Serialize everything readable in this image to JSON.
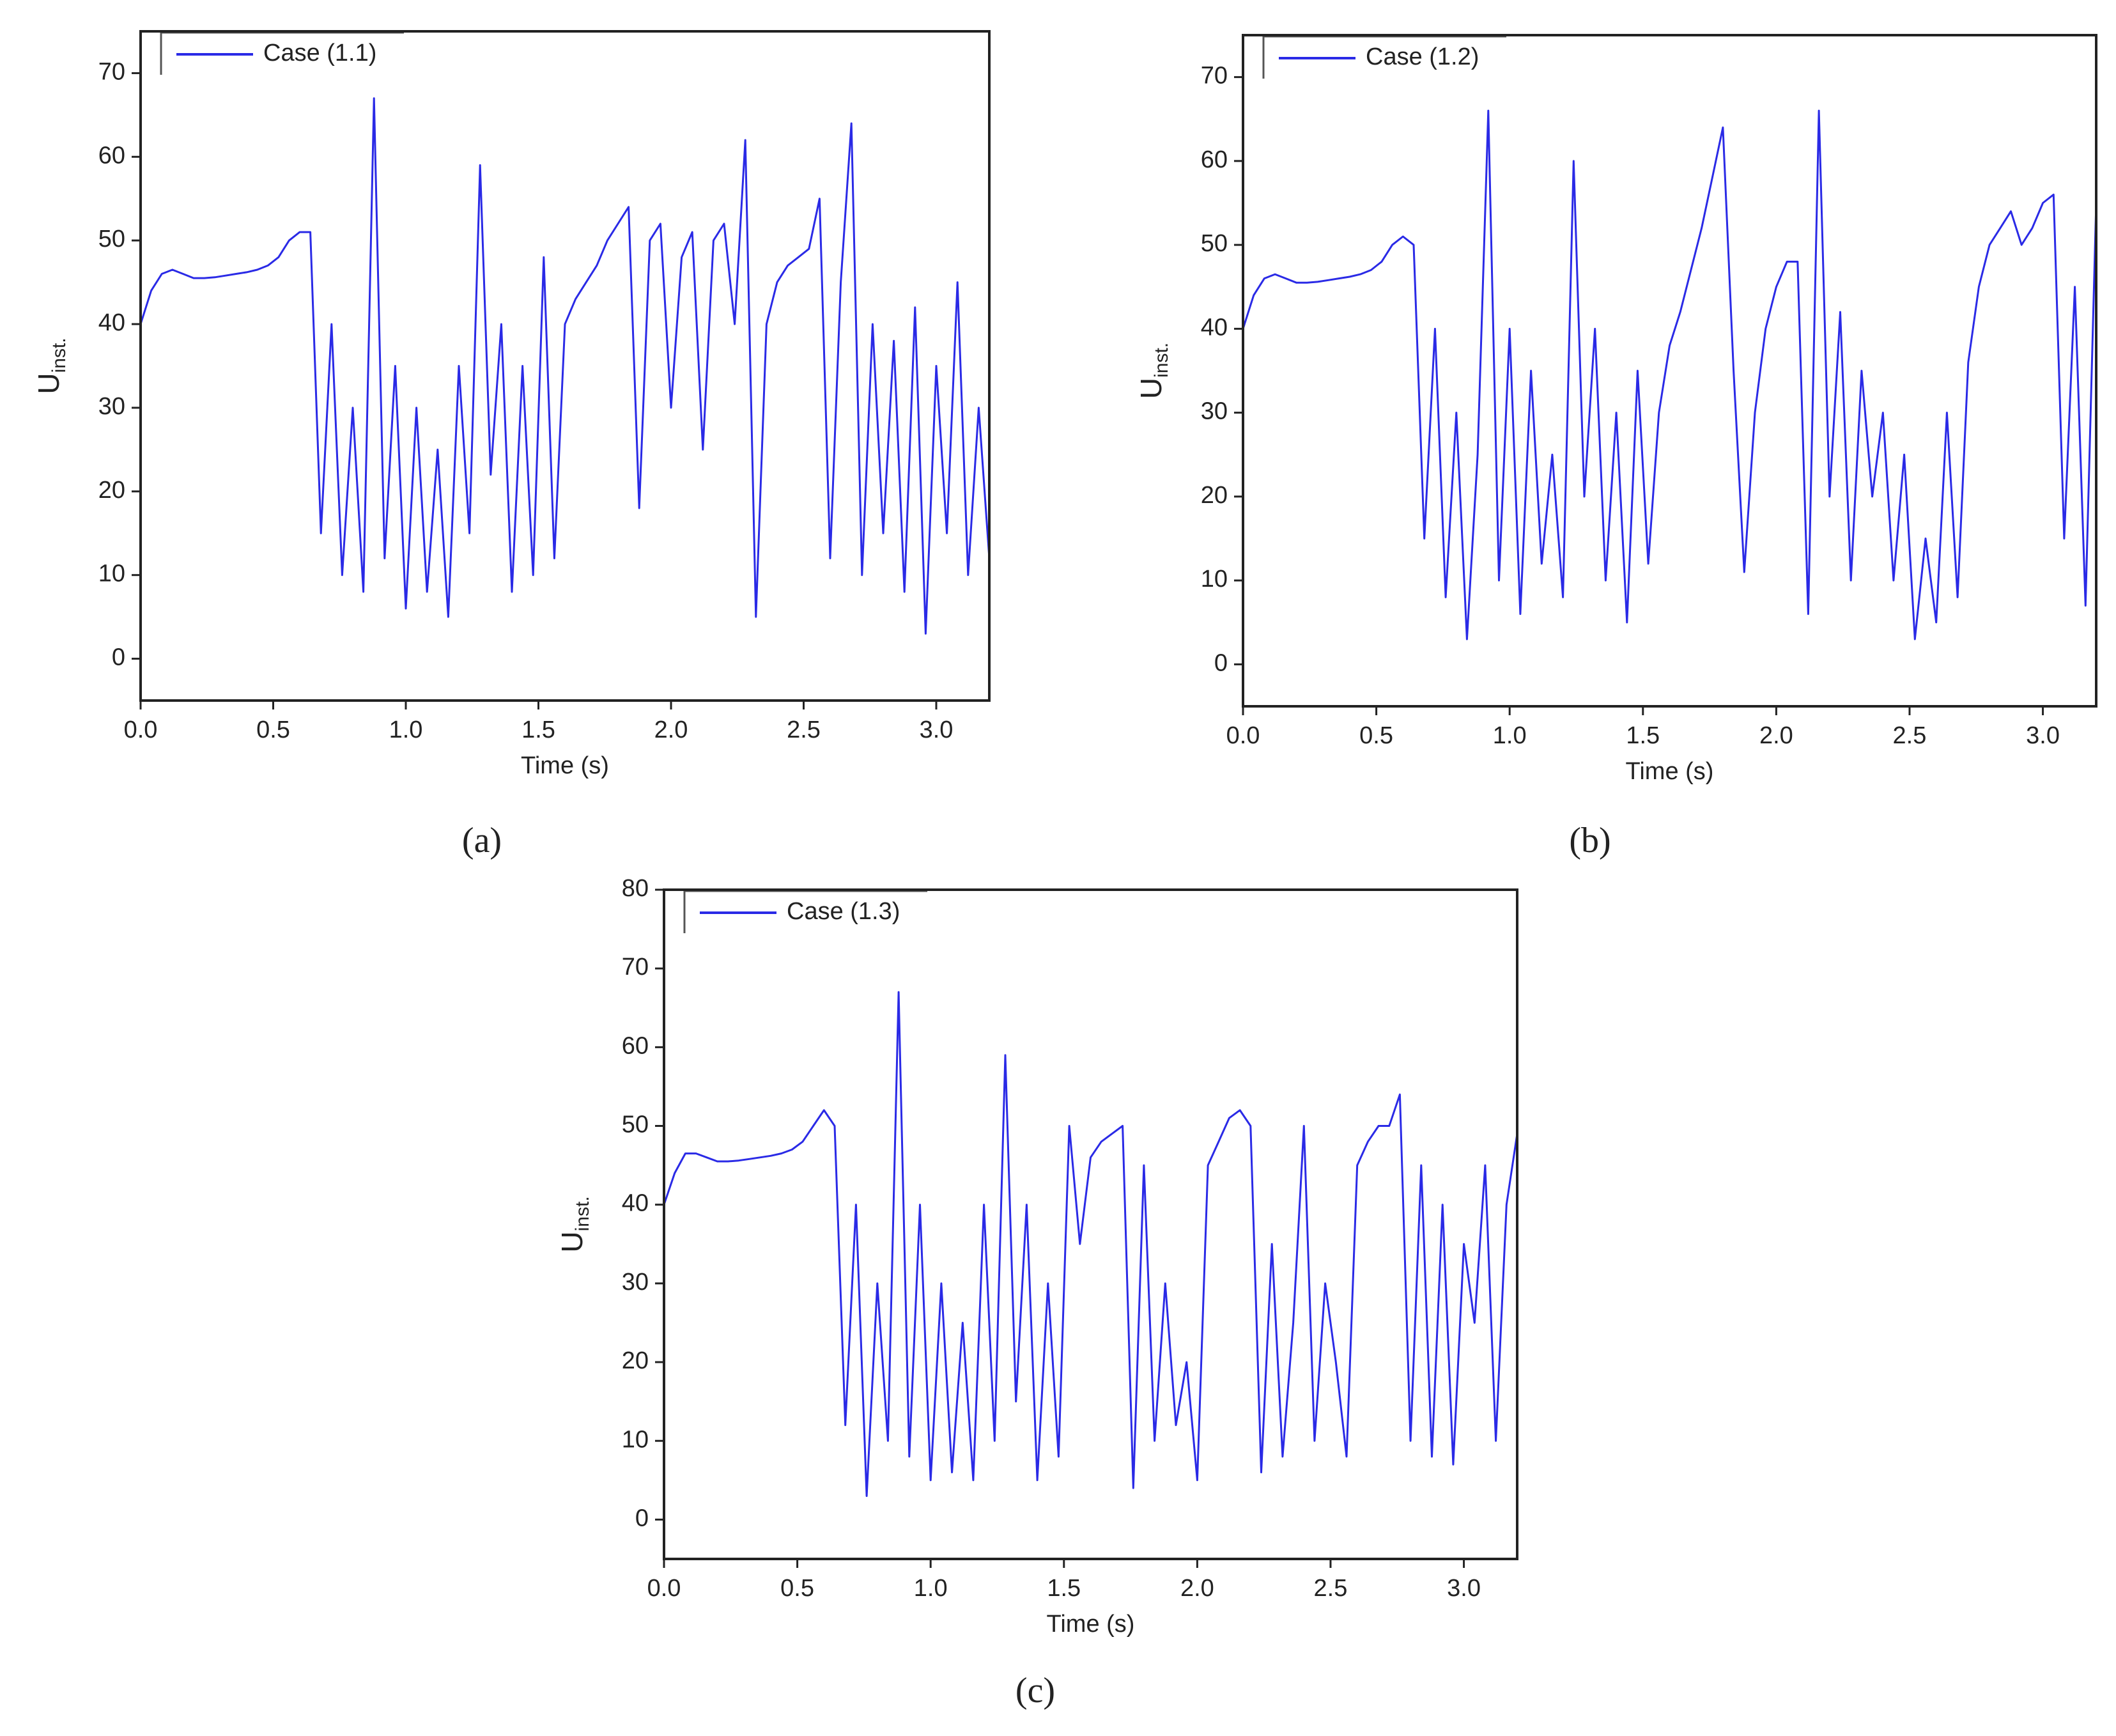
{
  "chart_data": [
    {
      "type": "line",
      "panel_label": "(a)",
      "x_label": "Time (s)",
      "y_label": "U",
      "y_label_sub": "inst.",
      "xlim": [
        0,
        3.2
      ],
      "ylim": [
        -5,
        75
      ],
      "xticks": [
        {
          "value": 0,
          "label": "0.0"
        },
        0.5,
        {
          "value": 1,
          "label": "1.0"
        },
        1.5,
        {
          "value": 2,
          "label": "2.0"
        },
        2.5,
        {
          "value": 3,
          "label": "3.0"
        }
      ],
      "yticks": [
        0,
        10,
        20,
        30,
        40,
        50,
        60,
        70
      ],
      "legend": "top-left",
      "series": [
        {
          "name": "Case (1.1)",
          "color": "#2a2ae6",
          "x": [
            0,
            0.04,
            0.08,
            0.12,
            0.16,
            0.2,
            0.24,
            0.28,
            0.32,
            0.36,
            0.4,
            0.44,
            0.48,
            0.52,
            0.56,
            0.6,
            0.64,
            0.68,
            0.72,
            0.76,
            0.8,
            0.84,
            0.88,
            0.92,
            0.96,
            1,
            1.04,
            1.08,
            1.12,
            1.16,
            1.2,
            1.24,
            1.28,
            1.32,
            1.36,
            1.4,
            1.44,
            1.48,
            1.52,
            1.56,
            1.6,
            1.64,
            1.68,
            1.72,
            1.76,
            1.8,
            1.84,
            1.88,
            1.92,
            1.96,
            2,
            2.04,
            2.08,
            2.12,
            2.16,
            2.2,
            2.24,
            2.28,
            2.32,
            2.36,
            2.4,
            2.44,
            2.48,
            2.52,
            2.56,
            2.6,
            2.64,
            2.68,
            2.72,
            2.76,
            2.8,
            2.84,
            2.88,
            2.92,
            2.96,
            3,
            3.04,
            3.08,
            3.12,
            3.16,
            3.2
          ],
          "values": [
            40,
            44,
            46,
            46.5,
            46,
            45.5,
            45.5,
            45.6,
            45.8,
            46,
            46.2,
            46.5,
            47,
            48,
            50,
            51,
            51,
            15,
            40,
            10,
            30,
            8,
            67,
            12,
            35,
            6,
            30,
            8,
            25,
            5,
            35,
            15,
            59,
            22,
            40,
            8,
            35,
            10,
            48,
            12,
            40,
            43,
            45,
            47,
            50,
            52,
            54,
            18,
            50,
            52,
            30,
            48,
            51,
            25,
            50,
            52,
            40,
            62,
            5,
            40,
            45,
            47,
            48,
            49,
            55,
            12,
            45,
            64,
            10,
            40,
            15,
            38,
            8,
            42,
            3,
            35,
            15,
            45,
            10,
            30,
            12
          ]
        }
      ]
    },
    {
      "type": "line",
      "panel_label": "(b)",
      "x_label": "Time (s)",
      "y_label": "U",
      "y_label_sub": "inst.",
      "xlim": [
        0,
        3.2
      ],
      "ylim": [
        -5,
        75
      ],
      "xticks": [
        {
          "value": 0,
          "label": "0.0"
        },
        0.5,
        {
          "value": 1,
          "label": "1.0"
        },
        1.5,
        {
          "value": 2,
          "label": "2.0"
        },
        2.5,
        {
          "value": 3,
          "label": "3.0"
        }
      ],
      "yticks": [
        0,
        10,
        20,
        30,
        40,
        50,
        60,
        70
      ],
      "legend": "top-left",
      "series": [
        {
          "name": "Case (1.2)",
          "color": "#2a2ae6",
          "x": [
            0,
            0.04,
            0.08,
            0.12,
            0.16,
            0.2,
            0.24,
            0.28,
            0.32,
            0.36,
            0.4,
            0.44,
            0.48,
            0.52,
            0.56,
            0.6,
            0.64,
            0.68,
            0.72,
            0.76,
            0.8,
            0.84,
            0.88,
            0.92,
            0.96,
            1,
            1.04,
            1.08,
            1.12,
            1.16,
            1.2,
            1.24,
            1.28,
            1.32,
            1.36,
            1.4,
            1.44,
            1.48,
            1.52,
            1.56,
            1.6,
            1.64,
            1.68,
            1.72,
            1.76,
            1.8,
            1.84,
            1.88,
            1.92,
            1.96,
            2,
            2.04,
            2.08,
            2.12,
            2.16,
            2.2,
            2.24,
            2.28,
            2.32,
            2.36,
            2.4,
            2.44,
            2.48,
            2.52,
            2.56,
            2.6,
            2.64,
            2.68,
            2.72,
            2.76,
            2.8,
            2.84,
            2.88,
            2.92,
            2.96,
            3,
            3.04,
            3.08,
            3.12,
            3.16,
            3.2
          ],
          "values": [
            40,
            44,
            46,
            46.5,
            46,
            45.5,
            45.5,
            45.6,
            45.8,
            46,
            46.2,
            46.5,
            47,
            48,
            50,
            51,
            50,
            15,
            40,
            8,
            30,
            3,
            25,
            66,
            10,
            40,
            6,
            35,
            12,
            25,
            8,
            60,
            20,
            40,
            10,
            30,
            5,
            35,
            12,
            30,
            38,
            42,
            47,
            52,
            58,
            64,
            35,
            11,
            30,
            40,
            45,
            48,
            48,
            6,
            66,
            20,
            42,
            10,
            35,
            20,
            30,
            10,
            25,
            3,
            15,
            5,
            30,
            8,
            36,
            45,
            50,
            52,
            54,
            50,
            52,
            55,
            56,
            15,
            45,
            7,
            55
          ]
        }
      ]
    },
    {
      "type": "line",
      "panel_label": "(c)",
      "x_label": "Time (s)",
      "y_label": "U",
      "y_label_sub": "inst.",
      "xlim": [
        0,
        3.2
      ],
      "ylim": [
        -5,
        80
      ],
      "xticks": [
        {
          "value": 0,
          "label": "0.0"
        },
        0.5,
        {
          "value": 1,
          "label": "1.0"
        },
        1.5,
        {
          "value": 2,
          "label": "2.0"
        },
        2.5,
        {
          "value": 3,
          "label": "3.0"
        }
      ],
      "yticks": [
        0,
        10,
        20,
        30,
        40,
        50,
        60,
        70,
        80
      ],
      "legend": "top-left",
      "series": [
        {
          "name": "Case (1.3)",
          "color": "#2a2ae6",
          "x": [
            0,
            0.04,
            0.08,
            0.12,
            0.16,
            0.2,
            0.24,
            0.28,
            0.32,
            0.36,
            0.4,
            0.44,
            0.48,
            0.52,
            0.56,
            0.6,
            0.64,
            0.68,
            0.72,
            0.76,
            0.8,
            0.84,
            0.88,
            0.92,
            0.96,
            1,
            1.04,
            1.08,
            1.12,
            1.16,
            1.2,
            1.24,
            1.28,
            1.32,
            1.36,
            1.4,
            1.44,
            1.48,
            1.52,
            1.56,
            1.6,
            1.64,
            1.68,
            1.72,
            1.76,
            1.8,
            1.84,
            1.88,
            1.92,
            1.96,
            2,
            2.04,
            2.08,
            2.12,
            2.16,
            2.2,
            2.24,
            2.28,
            2.32,
            2.36,
            2.4,
            2.44,
            2.48,
            2.52,
            2.56,
            2.6,
            2.64,
            2.68,
            2.72,
            2.76,
            2.8,
            2.84,
            2.88,
            2.92,
            2.96,
            3,
            3.04,
            3.08,
            3.12,
            3.16,
            3.2
          ],
          "values": [
            40,
            44,
            46.5,
            46.5,
            46,
            45.5,
            45.5,
            45.6,
            45.8,
            46,
            46.2,
            46.5,
            47,
            48,
            50,
            52,
            50,
            12,
            40,
            3,
            30,
            10,
            67,
            8,
            40,
            5,
            30,
            6,
            25,
            5,
            40,
            10,
            59,
            15,
            40,
            5,
            30,
            8,
            50,
            35,
            46,
            48,
            49,
            50,
            4,
            45,
            10,
            30,
            12,
            20,
            5,
            45,
            48,
            51,
            52,
            50,
            6,
            35,
            8,
            25,
            50,
            10,
            30,
            20,
            8,
            45,
            48,
            50,
            50,
            54,
            10,
            45,
            8,
            40,
            7,
            35,
            25,
            45,
            10,
            40,
            49
          ]
        }
      ]
    }
  ]
}
